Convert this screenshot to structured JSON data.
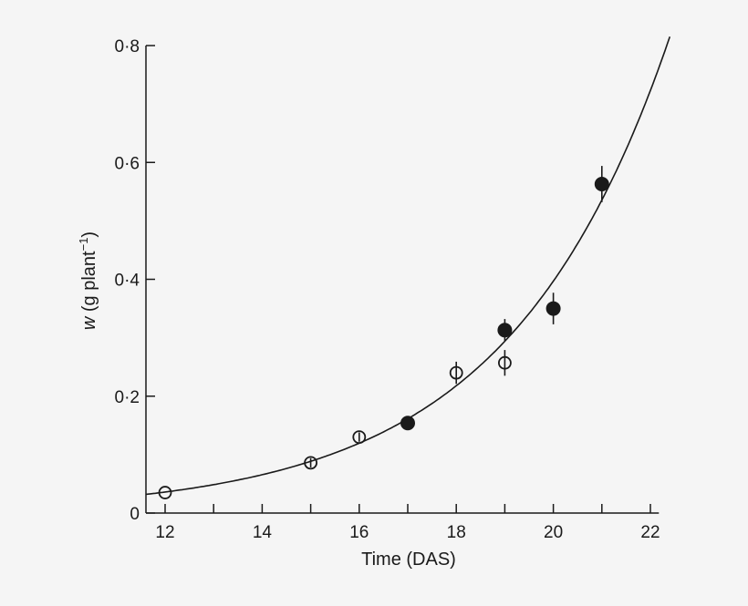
{
  "chart_data": {
    "type": "scatter",
    "title": "",
    "xlabel": "Time (DAS)",
    "ylabel_italic": "w",
    "ylabel_rest": " (g plant",
    "ylabel_sup": "−1",
    "ylabel_close": ")",
    "xlim": [
      11.6,
      22.4
    ],
    "ylim": [
      0,
      0.8
    ],
    "xticks": [
      12,
      13,
      14,
      15,
      16,
      17,
      18,
      19,
      20,
      21,
      22
    ],
    "xtick_labels": [
      "12",
      "",
      "14",
      "",
      "16",
      "",
      "18",
      "",
      "20",
      "",
      "22"
    ],
    "yticks": [
      0,
      0.2,
      0.4,
      0.6,
      0.8
    ],
    "ytick_labels": [
      "0",
      "0·2",
      "0·4",
      "0·6",
      "0·8"
    ],
    "grid": false,
    "series": [
      {
        "marker": "open-circle",
        "points": [
          {
            "x": 12,
            "y": 0.035,
            "err": 0
          },
          {
            "x": 15,
            "y": 0.086,
            "err": 0.008
          },
          {
            "x": 16,
            "y": 0.13,
            "err": 0.008
          },
          {
            "x": 18,
            "y": 0.24,
            "err": 0.019
          },
          {
            "x": 19,
            "y": 0.257,
            "err": 0.022
          }
        ]
      },
      {
        "marker": "filled-circle",
        "points": [
          {
            "x": 17,
            "y": 0.154,
            "err": 0.008
          },
          {
            "x": 19,
            "y": 0.313,
            "err": 0.019
          },
          {
            "x": 20,
            "y": 0.35,
            "err": 0.027
          },
          {
            "x": 21,
            "y": 0.563,
            "err": 0.031
          }
        ]
      }
    ],
    "fit": {
      "type": "exponential",
      "w_at_12": 0.036,
      "rate": 0.3
    },
    "colors": {
      "ink": "#1a1a1a",
      "background": "#f5f5f5"
    }
  }
}
